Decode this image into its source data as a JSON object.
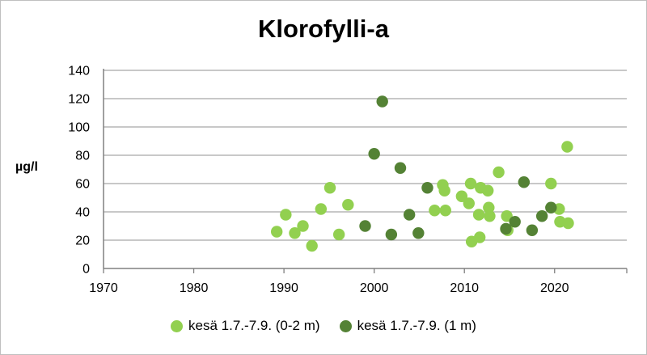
{
  "chart_data": {
    "type": "scatter",
    "title": "Klorofylli-a",
    "xlabel": "",
    "ylabel": "µg/l",
    "xlim": [
      1970,
      2028
    ],
    "ylim": [
      0,
      140
    ],
    "x_ticks": [
      1970,
      1980,
      1990,
      2000,
      2010,
      2020
    ],
    "y_ticks": [
      0,
      20,
      40,
      60,
      80,
      100,
      120,
      140
    ],
    "grid": "horizontal",
    "legend_position": "bottom",
    "series": [
      {
        "name": "kesä 1.7.-7.9. (0-2 m)",
        "color": "#92d050",
        "points": [
          [
            1989.2,
            26
          ],
          [
            1990.2,
            38
          ],
          [
            1991.2,
            25
          ],
          [
            1992.1,
            30
          ],
          [
            1993.1,
            16
          ],
          [
            1994.1,
            42
          ],
          [
            1995.1,
            57
          ],
          [
            1996.1,
            24
          ],
          [
            1997.1,
            45
          ],
          [
            2006.7,
            41
          ],
          [
            2007.6,
            59
          ],
          [
            2007.8,
            55
          ],
          [
            2007.9,
            41
          ],
          [
            2009.7,
            51
          ],
          [
            2010.5,
            46
          ],
          [
            2010.7,
            60
          ],
          [
            2010.8,
            19
          ],
          [
            2011.6,
            38
          ],
          [
            2011.7,
            22
          ],
          [
            2011.8,
            57
          ],
          [
            2012.6,
            55
          ],
          [
            2012.7,
            43
          ],
          [
            2012.8,
            37
          ],
          [
            2013.8,
            68
          ],
          [
            2014.7,
            37
          ],
          [
            2014.8,
            27
          ],
          [
            2019.6,
            60
          ],
          [
            2020.5,
            42
          ],
          [
            2020.6,
            33
          ],
          [
            2021.4,
            86
          ],
          [
            2021.5,
            32
          ]
        ]
      },
      {
        "name": "kesä 1.7.-7.9. (1 m)",
        "color": "#548235",
        "points": [
          [
            1999.0,
            30
          ],
          [
            2000.0,
            81
          ],
          [
            2000.9,
            118
          ],
          [
            2001.9,
            24
          ],
          [
            2002.9,
            71
          ],
          [
            2003.9,
            38
          ],
          [
            2004.9,
            25
          ],
          [
            2005.9,
            57
          ],
          [
            2014.6,
            28
          ],
          [
            2015.6,
            33
          ],
          [
            2016.6,
            61
          ],
          [
            2017.5,
            27
          ],
          [
            2018.6,
            37
          ],
          [
            2019.6,
            43
          ]
        ]
      }
    ]
  }
}
